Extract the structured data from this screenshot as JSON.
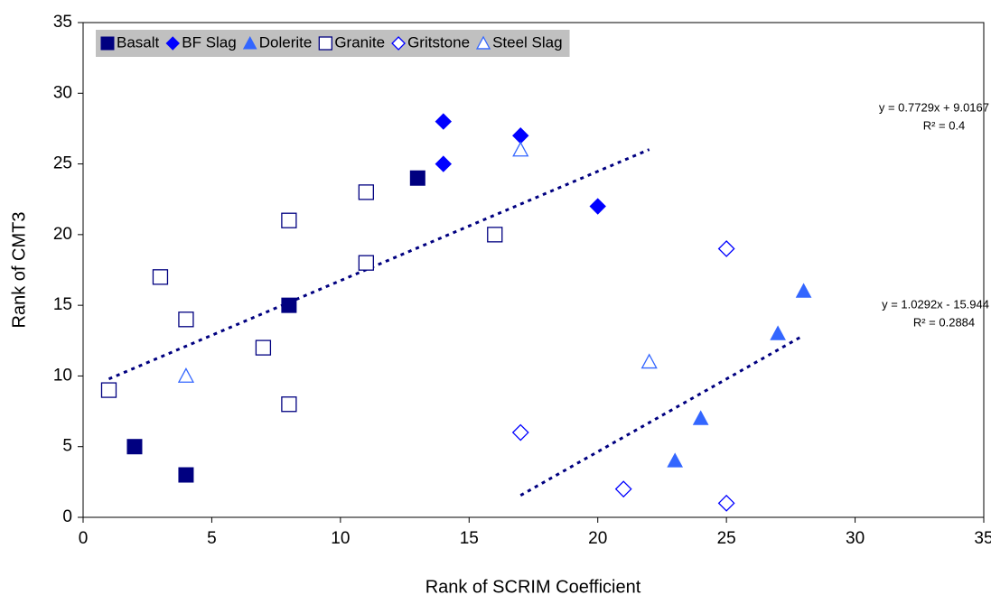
{
  "chart_data": {
    "type": "scatter",
    "xlabel": "Rank of SCRIM Coefficient",
    "ylabel": "Rank of CMT3",
    "xlim": [
      0,
      35
    ],
    "xticks": [
      0,
      5,
      10,
      15,
      20,
      25,
      30,
      35
    ],
    "ylim": [
      0,
      35
    ],
    "yticks": [
      0,
      5,
      10,
      15,
      20,
      25,
      30,
      35
    ],
    "grid": false,
    "legend": "top-left",
    "series": [
      {
        "name": "Basalt",
        "color": "#000080",
        "marker": "square",
        "filled": true,
        "x": [
          2,
          4,
          8,
          13
        ],
        "values": [
          5,
          3,
          15,
          24
        ]
      },
      {
        "name": "BF Slag",
        "color": "#0000ff",
        "marker": "diamond",
        "filled": true,
        "x": [
          14,
          14,
          17,
          20
        ],
        "values": [
          28,
          25,
          27,
          22
        ]
      },
      {
        "name": "Dolerite",
        "color": "#3366ff",
        "marker": "triangle",
        "filled": true,
        "x": [
          23,
          24,
          27,
          28
        ],
        "values": [
          4,
          7,
          13,
          16
        ]
      },
      {
        "name": "Granite",
        "color": "#000080",
        "marker": "square",
        "filled": false,
        "x": [
          1,
          3,
          4,
          7,
          8,
          8,
          11,
          11,
          16
        ],
        "values": [
          9,
          17,
          14,
          12,
          21,
          8,
          23,
          18,
          20
        ]
      },
      {
        "name": "Gritstone",
        "color": "#0000ff",
        "marker": "diamond",
        "filled": false,
        "x": [
          17,
          21,
          25,
          25
        ],
        "values": [
          6,
          2,
          19,
          1
        ]
      },
      {
        "name": "Steel Slag",
        "color": "#3366ff",
        "marker": "triangle",
        "filled": false,
        "x": [
          4,
          17,
          22
        ],
        "values": [
          10,
          26,
          11
        ]
      }
    ],
    "trendlines": [
      {
        "equation": "y = 0.7729x + 9.0167",
        "r2": "R² = 0.4",
        "slope": 0.7729,
        "intercept": 9.0167,
        "x_range": [
          1,
          22
        ],
        "color": "#000080"
      },
      {
        "equation": "y = 1.0292x - 15.944",
        "r2": "R² = 0.2884",
        "slope": 1.0292,
        "intercept": -15.944,
        "x_range": [
          17,
          28
        ],
        "color": "#000080"
      }
    ]
  }
}
